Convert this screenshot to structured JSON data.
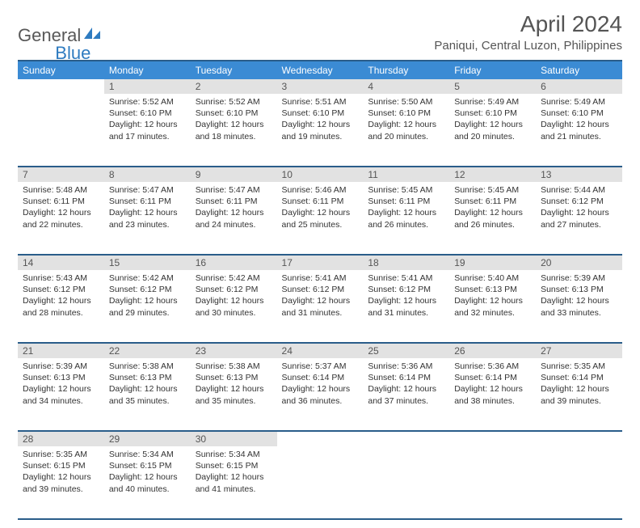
{
  "logo": {
    "part1": "General",
    "part2": "Blue"
  },
  "header": {
    "title": "April 2024",
    "location": "Paniqui, Central Luzon, Philippines"
  },
  "colors": {
    "header_bg": "#3b8bd4",
    "header_border": "#2a5d8a",
    "daynum_bg": "#e2e2e2",
    "text": "#333333",
    "logo_gray": "#585858",
    "logo_blue": "#2e7bc0"
  },
  "weekdays": [
    "Sunday",
    "Monday",
    "Tuesday",
    "Wednesday",
    "Thursday",
    "Friday",
    "Saturday"
  ],
  "weeks": [
    [
      null,
      {
        "n": "1",
        "sr": "5:52 AM",
        "ss": "6:10 PM",
        "dl": "12 hours and 17 minutes."
      },
      {
        "n": "2",
        "sr": "5:52 AM",
        "ss": "6:10 PM",
        "dl": "12 hours and 18 minutes."
      },
      {
        "n": "3",
        "sr": "5:51 AM",
        "ss": "6:10 PM",
        "dl": "12 hours and 19 minutes."
      },
      {
        "n": "4",
        "sr": "5:50 AM",
        "ss": "6:10 PM",
        "dl": "12 hours and 20 minutes."
      },
      {
        "n": "5",
        "sr": "5:49 AM",
        "ss": "6:10 PM",
        "dl": "12 hours and 20 minutes."
      },
      {
        "n": "6",
        "sr": "5:49 AM",
        "ss": "6:10 PM",
        "dl": "12 hours and 21 minutes."
      }
    ],
    [
      {
        "n": "7",
        "sr": "5:48 AM",
        "ss": "6:11 PM",
        "dl": "12 hours and 22 minutes."
      },
      {
        "n": "8",
        "sr": "5:47 AM",
        "ss": "6:11 PM",
        "dl": "12 hours and 23 minutes."
      },
      {
        "n": "9",
        "sr": "5:47 AM",
        "ss": "6:11 PM",
        "dl": "12 hours and 24 minutes."
      },
      {
        "n": "10",
        "sr": "5:46 AM",
        "ss": "6:11 PM",
        "dl": "12 hours and 25 minutes."
      },
      {
        "n": "11",
        "sr": "5:45 AM",
        "ss": "6:11 PM",
        "dl": "12 hours and 26 minutes."
      },
      {
        "n": "12",
        "sr": "5:45 AM",
        "ss": "6:11 PM",
        "dl": "12 hours and 26 minutes."
      },
      {
        "n": "13",
        "sr": "5:44 AM",
        "ss": "6:12 PM",
        "dl": "12 hours and 27 minutes."
      }
    ],
    [
      {
        "n": "14",
        "sr": "5:43 AM",
        "ss": "6:12 PM",
        "dl": "12 hours and 28 minutes."
      },
      {
        "n": "15",
        "sr": "5:42 AM",
        "ss": "6:12 PM",
        "dl": "12 hours and 29 minutes."
      },
      {
        "n": "16",
        "sr": "5:42 AM",
        "ss": "6:12 PM",
        "dl": "12 hours and 30 minutes."
      },
      {
        "n": "17",
        "sr": "5:41 AM",
        "ss": "6:12 PM",
        "dl": "12 hours and 31 minutes."
      },
      {
        "n": "18",
        "sr": "5:41 AM",
        "ss": "6:12 PM",
        "dl": "12 hours and 31 minutes."
      },
      {
        "n": "19",
        "sr": "5:40 AM",
        "ss": "6:13 PM",
        "dl": "12 hours and 32 minutes."
      },
      {
        "n": "20",
        "sr": "5:39 AM",
        "ss": "6:13 PM",
        "dl": "12 hours and 33 minutes."
      }
    ],
    [
      {
        "n": "21",
        "sr": "5:39 AM",
        "ss": "6:13 PM",
        "dl": "12 hours and 34 minutes."
      },
      {
        "n": "22",
        "sr": "5:38 AM",
        "ss": "6:13 PM",
        "dl": "12 hours and 35 minutes."
      },
      {
        "n": "23",
        "sr": "5:38 AM",
        "ss": "6:13 PM",
        "dl": "12 hours and 35 minutes."
      },
      {
        "n": "24",
        "sr": "5:37 AM",
        "ss": "6:14 PM",
        "dl": "12 hours and 36 minutes."
      },
      {
        "n": "25",
        "sr": "5:36 AM",
        "ss": "6:14 PM",
        "dl": "12 hours and 37 minutes."
      },
      {
        "n": "26",
        "sr": "5:36 AM",
        "ss": "6:14 PM",
        "dl": "12 hours and 38 minutes."
      },
      {
        "n": "27",
        "sr": "5:35 AM",
        "ss": "6:14 PM",
        "dl": "12 hours and 39 minutes."
      }
    ],
    [
      {
        "n": "28",
        "sr": "5:35 AM",
        "ss": "6:15 PM",
        "dl": "12 hours and 39 minutes."
      },
      {
        "n": "29",
        "sr": "5:34 AM",
        "ss": "6:15 PM",
        "dl": "12 hours and 40 minutes."
      },
      {
        "n": "30",
        "sr": "5:34 AM",
        "ss": "6:15 PM",
        "dl": "12 hours and 41 minutes."
      },
      null,
      null,
      null,
      null
    ]
  ],
  "labels": {
    "sunrise": "Sunrise:",
    "sunset": "Sunset:",
    "daylight": "Daylight:"
  }
}
